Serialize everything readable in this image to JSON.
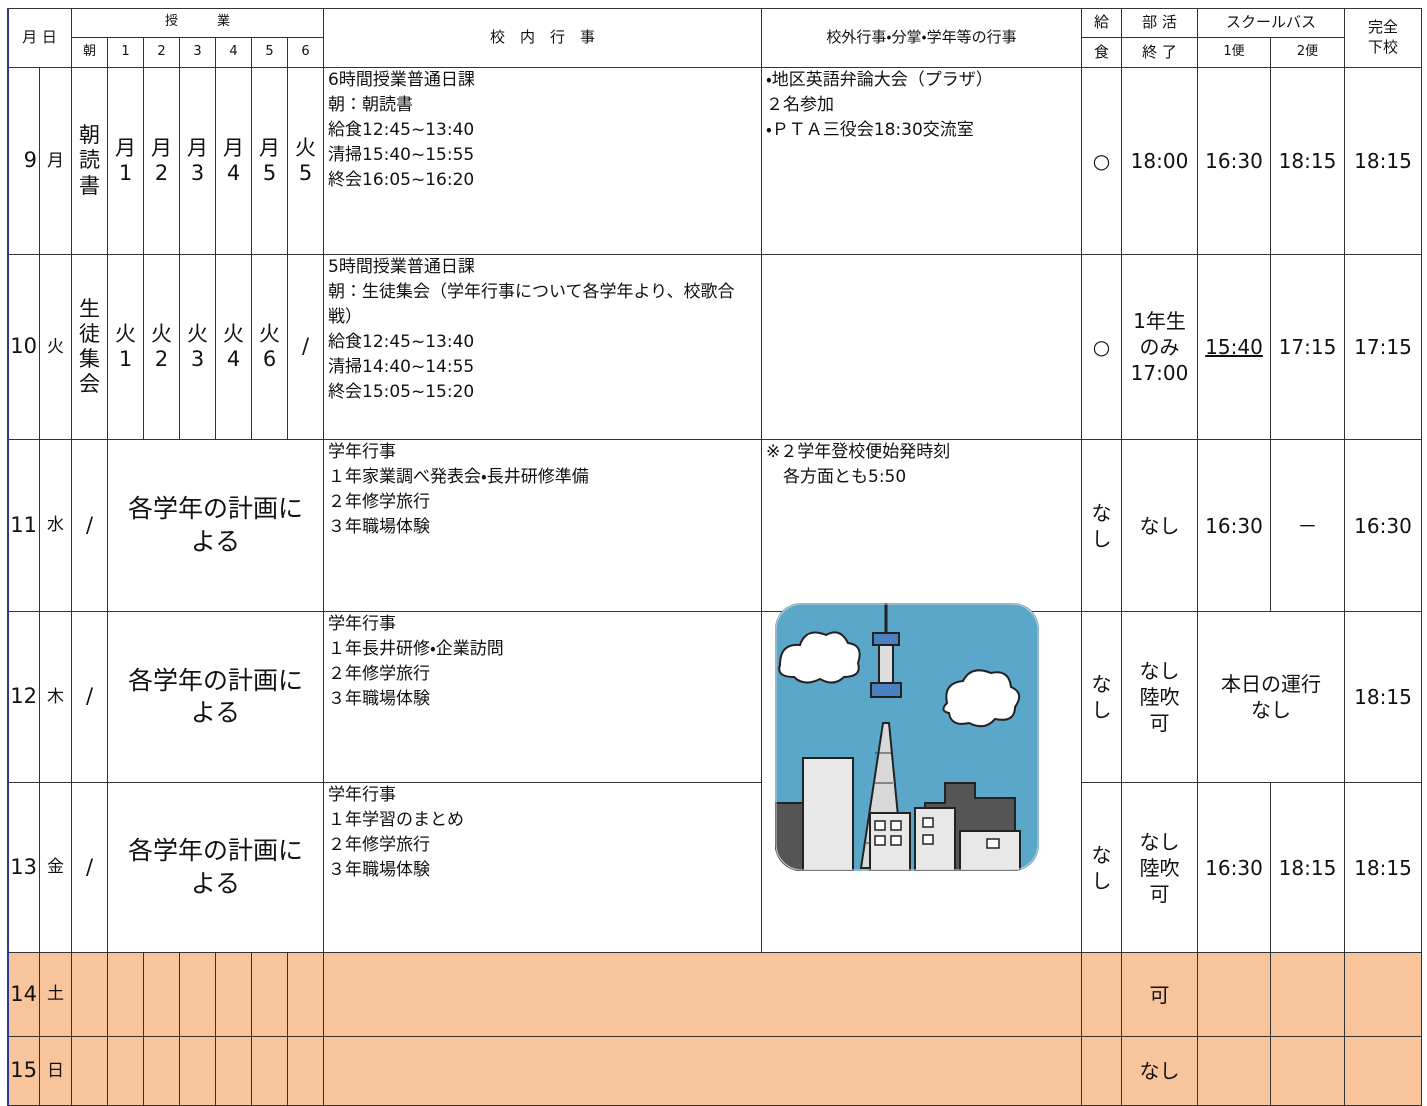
{
  "header": {
    "month_day": "月 日",
    "classes": "授　　　業",
    "periods": [
      "朝",
      "1",
      "2",
      "3",
      "4",
      "5",
      "6"
    ],
    "school_events": "校　内　行　事",
    "outside_events": "校外行事・分掌・学年等の行事",
    "lunch": [
      "給",
      "食"
    ],
    "club": [
      "部 活",
      "終 了"
    ],
    "bus": "スクールバス",
    "bus1": "1便",
    "bus2": "2便",
    "dismissal": "完全\n下校"
  },
  "rows": [
    {
      "date": "9",
      "dow": "月",
      "morning": "朝\n読\n書",
      "periods": [
        "月\n1",
        "月\n2",
        "月\n3",
        "月\n4",
        "月\n5",
        "火\n5"
      ],
      "school": "6時間授業普通日課\n朝：朝読書\n給食12:45~13:40\n清掃15:40~15:55\n終会16:05~16:20",
      "outside": "・地区英語弁論大会（プラザ）\n２名参加\n・ＰＴＡ三役会18:30交流室",
      "lunch": "○",
      "club": "18:00",
      "bus1": "16:30",
      "bus2": "18:15",
      "dismissal": "18:15"
    },
    {
      "date": "10",
      "dow": "火",
      "morning": "生\n徒\n集\n会",
      "periods": [
        "火\n1",
        "火\n2",
        "火\n3",
        "火\n4",
        "火\n6",
        "/"
      ],
      "school": "5時間授業普通日課\n朝：生徒集会（学年行事について各学年より、校歌合戦）\n給食12:45~13:40\n清掃14:40~14:55\n終会15:05~15:20",
      "outside": "",
      "lunch": "○",
      "club": "1年生\nのみ\n17:00",
      "bus1": "15:40",
      "bus2": "17:15",
      "dismissal": "17:15"
    },
    {
      "date": "11",
      "dow": "水",
      "morning": "/",
      "plan": "各学年の計画に\nよる",
      "school": "学年行事\n１年家業調べ発表会・長井研修準備\n２年修学旅行\n３年職場体験",
      "outside": "※２学年登校便始発時刻\n　各方面とも5:50",
      "lunch": "な\nし",
      "club": "なし",
      "bus1": "16:30",
      "bus2": "－",
      "dismissal": "16:30"
    },
    {
      "date": "12",
      "dow": "木",
      "morning": "/",
      "plan": "各学年の計画に\nよる",
      "school": "学年行事\n１年長井研修・企業訪問\n２年修学旅行\n３年職場体験",
      "lunch": "な\nし",
      "club": "なし\n陸吹\n可",
      "bus": "本日の運行\nなし",
      "dismissal": "18:15"
    },
    {
      "date": "13",
      "dow": "金",
      "morning": "/",
      "plan": "各学年の計画に\nよる",
      "school": "学年行事\n１年学習のまとめ\n２年修学旅行\n３年職場体験",
      "lunch": "な\nし",
      "club": "なし\n陸吹\n可",
      "bus1": "16:30",
      "bus2": "18:15",
      "dismissal": "18:15"
    },
    {
      "date": "14",
      "dow": "土",
      "club": "可"
    },
    {
      "date": "15",
      "dow": "日",
      "club": "なし"
    }
  ]
}
